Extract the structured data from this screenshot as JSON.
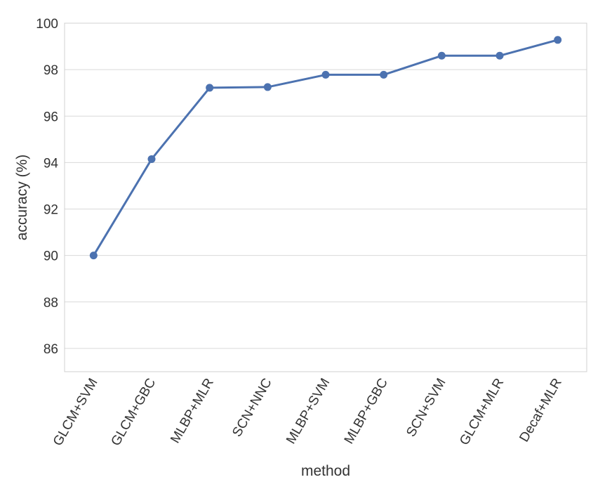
{
  "chart_data": {
    "type": "line",
    "categories": [
      "GLCM+SVM",
      "GLCM+GBC",
      "MLBP+MLR",
      "SCN+NNC",
      "MLBP+SVM",
      "MLBP+GBC",
      "SCN+SVM",
      "GLCM+MLR",
      "Decaf+MLR"
    ],
    "series": [
      {
        "values": [
          90.0,
          94.15,
          97.22,
          97.25,
          97.78,
          97.78,
          98.6,
          98.6,
          99.28
        ]
      }
    ],
    "xlabel": "method",
    "ylabel": "accuracy (%)",
    "ylim": [
      85,
      100
    ],
    "yticks": [
      86,
      88,
      90,
      92,
      94,
      96,
      98,
      100
    ],
    "grid": true,
    "line_color": "#4c72b0"
  }
}
